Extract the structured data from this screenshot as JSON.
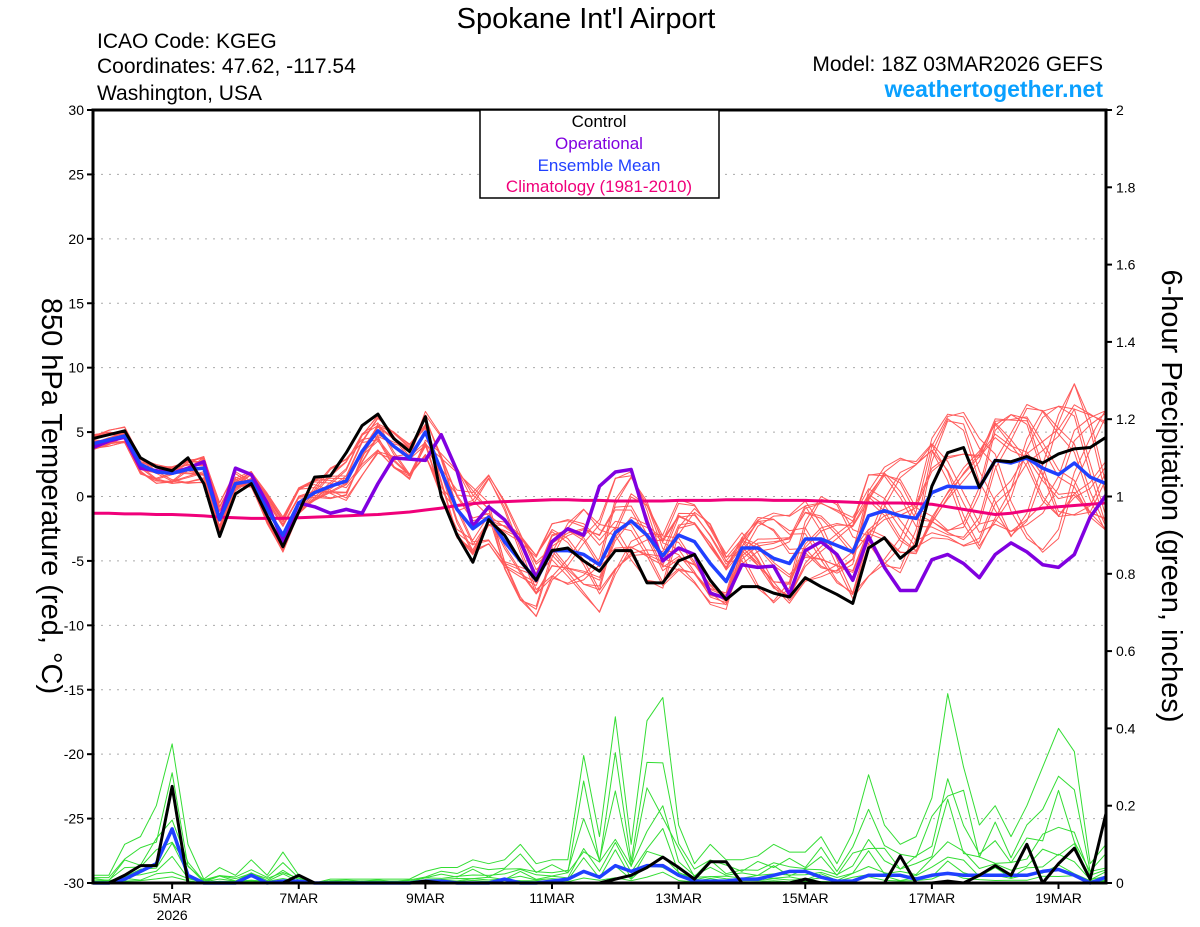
{
  "header": {
    "title": "Spokane Int'l Airport",
    "icao": "ICAO Code: KGEG",
    "coords": "Coordinates: 47.62, -117.54",
    "region": "Washington, USA",
    "model": "Model: 18Z 03MAR2026 GEFS",
    "site": "weathertogether.net"
  },
  "colors": {
    "control": "#000000",
    "operational": "#8000e0",
    "mean": "#2040ff",
    "climo": "#f0007a",
    "members": "#ff5a5a",
    "precip_members": "#33dd33",
    "site": "#0aa0ff"
  },
  "chart_data": {
    "type": "line",
    "title": "Spokane Int'l Airport",
    "ylabel": "850 hPa Temperature (red, °C)",
    "y2label": "6-hour Precipitation (green, inches)",
    "ylim": [
      -30,
      30
    ],
    "y2lim": [
      0,
      2
    ],
    "yticks": [
      "-30",
      "-25",
      "-20",
      "-15",
      "-10",
      "-5",
      "0",
      "5",
      "10",
      "15",
      "20",
      "25",
      "30"
    ],
    "y2ticks": [
      "0",
      "0.2",
      "0.4",
      "0.6",
      "0.8",
      "1",
      "1.2",
      "1.4",
      "1.6",
      "1.8",
      "2"
    ],
    "xticks": [
      {
        "label": "5MAR",
        "sub": "2026",
        "step": 5
      },
      {
        "label": "7MAR",
        "step": 13
      },
      {
        "label": "9MAR",
        "step": 21
      },
      {
        "label": "11MAR",
        "step": 29
      },
      {
        "label": "13MAR",
        "step": 37
      },
      {
        "label": "15MAR",
        "step": 45
      },
      {
        "label": "17MAR",
        "step": 53
      },
      {
        "label": "19MAR",
        "step": 61
      }
    ],
    "x_step_hours": 6,
    "n_steps": 65,
    "legend": [
      "Control",
      "Operational",
      "Ensemble Mean",
      "Climatology (1981-2010)"
    ],
    "legend_position": "top-center",
    "grid": true,
    "series": {
      "control": [
        4.5,
        4.8,
        5.1,
        3.0,
        2.3,
        2.0,
        3.0,
        1.0,
        -3.1,
        0.2,
        1.0,
        -1.5,
        -3.9,
        -1.2,
        1.5,
        1.6,
        3.4,
        5.5,
        6.4,
        4.5,
        3.5,
        6.2,
        0,
        -3,
        -5.1,
        -1.8,
        -3,
        -5,
        -6.5,
        -4.2,
        -4,
        -5,
        -5.8,
        -4.2,
        -4.2,
        -6.7,
        -6.7,
        -5,
        -4.5,
        -6.5,
        -8,
        -7,
        -7,
        -7.5,
        -7.8,
        -6.3,
        -7,
        -7.6,
        -8.3,
        -4,
        -3.2,
        -4.8,
        -3.8,
        0.8,
        3.4,
        3.8,
        0.7,
        2.8,
        2.7,
        3.1,
        2.6,
        3.3,
        3.7,
        3.8,
        4.6
      ],
      "operational": [
        3.8,
        4.3,
        4.6,
        2.2,
        2.0,
        1.8,
        2.2,
        2.7,
        -1.8,
        2.2,
        1.7,
        -0.5,
        -3.5,
        -0.5,
        -0.8,
        -1.3,
        -1,
        -1.3,
        1,
        3,
        2.9,
        2.8,
        4.8,
        2.0,
        -2.3,
        -0.8,
        -1.8,
        -3.5,
        -6.3,
        -3.5,
        -2.5,
        -3.0,
        0.8,
        1.9,
        2.1,
        -2.0,
        -5,
        -4,
        -4.5,
        -7.5,
        -7.9,
        -5.3,
        -5.5,
        -5.4,
        -7.6,
        -4.2,
        -3.5,
        -4.5,
        -6.5,
        -3.1,
        -5.5,
        -7.3,
        -7.3,
        -4.9,
        -4.5,
        -5.2,
        -6.3,
        -4.5,
        -3.6,
        -4.3,
        -5.3,
        -5.5,
        -4.5,
        -1.6,
        0.1
      ],
      "mean": [
        4.1,
        4.4,
        4.7,
        2.5,
        1.9,
        1.8,
        2.1,
        2.2,
        -1.8,
        1.0,
        1.2,
        -1.0,
        -3.0,
        -0.5,
        0.3,
        0.8,
        1.2,
        3.5,
        5.1,
        3.9,
        3.0,
        5.0,
        2.0,
        -1.0,
        -2.5,
        -1.6,
        -3.5,
        -5.0,
        -6.5,
        -4.2,
        -4.2,
        -4.5,
        -5.3,
        -2.8,
        -1.9,
        -3.0,
        -4.6,
        -3.0,
        -3.5,
        -5.2,
        -6.6,
        -4.0,
        -4.0,
        -4.8,
        -5.2,
        -3.3,
        -3.3,
        -3.8,
        -4.3,
        -1.5,
        -1.1,
        -1.5,
        -1.7,
        0.3,
        0.8,
        0.7,
        0.7,
        2.8,
        2.6,
        3.0,
        2.2,
        1.7,
        2.6,
        1.5,
        1.0
      ],
      "climatology": [
        -1.3,
        -1.3,
        -1.35,
        -1.35,
        -1.4,
        -1.4,
        -1.45,
        -1.5,
        -1.6,
        -1.65,
        -1.7,
        -1.7,
        -1.7,
        -1.65,
        -1.6,
        -1.55,
        -1.5,
        -1.45,
        -1.4,
        -1.3,
        -1.2,
        -1.05,
        -0.9,
        -0.7,
        -0.55,
        -0.45,
        -0.4,
        -0.35,
        -0.3,
        -0.25,
        -0.25,
        -0.3,
        -0.3,
        -0.35,
        -0.35,
        -0.35,
        -0.35,
        -0.3,
        -0.3,
        -0.3,
        -0.25,
        -0.25,
        -0.25,
        -0.3,
        -0.3,
        -0.3,
        -0.35,
        -0.4,
        -0.45,
        -0.5,
        -0.5,
        -0.5,
        -0.55,
        -0.6,
        -0.8,
        -1.0,
        -1.2,
        -1.4,
        -1.3,
        -1.1,
        -0.9,
        -0.8,
        -0.7,
        -0.6,
        -0.5
      ],
      "member_spread": [
        0.8,
        0.8,
        0.8,
        1,
        1,
        1,
        1.2,
        1.2,
        1.5,
        1.5,
        1.5,
        1.5,
        1.5,
        1.5,
        1.7,
        1.8,
        2,
        2,
        2,
        2,
        2,
        2.5,
        3,
        3.5,
        4,
        4,
        4,
        3.5,
        3,
        3,
        3.5,
        4,
        4.5,
        4.5,
        4.5,
        4,
        4,
        4,
        3.5,
        3.5,
        3.5,
        4,
        4,
        4,
        4,
        4,
        4,
        4,
        4.5,
        5,
        5,
        5.5,
        5.5,
        6,
        6,
        6.5,
        6.5,
        6.5,
        6.5,
        7,
        7,
        7,
        7,
        7,
        7
      ],
      "precip_control": [
        0,
        0,
        0.02,
        0.045,
        0.045,
        0.25,
        0,
        0,
        0,
        0,
        0,
        0,
        0,
        0.02,
        0,
        0,
        0,
        0,
        0,
        0,
        0,
        0.005,
        0,
        0,
        0,
        0,
        0,
        0,
        0,
        0,
        0,
        0,
        0,
        0.01,
        0.02,
        0.04,
        0.067,
        0.04,
        0.01,
        0.055,
        0.055,
        0,
        0,
        0,
        0,
        0.01,
        0,
        0,
        0,
        0,
        0,
        0.07,
        0,
        0,
        0.005,
        0,
        0.02,
        0.045,
        0.02,
        0.1,
        0,
        0.05,
        0.09,
        0.01,
        0.18
      ],
      "precip_mean": [
        0,
        0,
        0.01,
        0.03,
        0.05,
        0.14,
        0.02,
        0,
        0,
        0,
        0.02,
        0,
        0.005,
        0.005,
        0,
        0,
        0,
        0,
        0,
        0,
        0,
        0.005,
        0.005,
        0,
        0,
        0,
        0.01,
        0,
        0,
        0.005,
        0.01,
        0.03,
        0.015,
        0.045,
        0.03,
        0.045,
        0.045,
        0.02,
        0.005,
        0.005,
        0.005,
        0.01,
        0.01,
        0.02,
        0.03,
        0.03,
        0.015,
        0.005,
        0.005,
        0.02,
        0.02,
        0.02,
        0.01,
        0.02,
        0.025,
        0.02,
        0.02,
        0.02,
        0.02,
        0.02,
        0.03,
        0.035,
        0.02,
        0,
        0.015
      ],
      "precip_max": [
        0.02,
        0.02,
        0.1,
        0.12,
        0.2,
        0.36,
        0.1,
        0.01,
        0.04,
        0.02,
        0.06,
        0.02,
        0.08,
        0.02,
        0,
        0.01,
        0.01,
        0.01,
        0.01,
        0.01,
        0.01,
        0.03,
        0.04,
        0.04,
        0.06,
        0.05,
        0.06,
        0.1,
        0.05,
        0.06,
        0.06,
        0.33,
        0.12,
        0.43,
        0.1,
        0.42,
        0.48,
        0.15,
        0.05,
        0.1,
        0.06,
        0.06,
        0.07,
        0.1,
        0.08,
        0.08,
        0.12,
        0.05,
        0.13,
        0.28,
        0.15,
        0.1,
        0.12,
        0.22,
        0.49,
        0.3,
        0.15,
        0.2,
        0.12,
        0.2,
        0.3,
        0.4,
        0.34,
        0.05,
        0.1
      ]
    }
  }
}
